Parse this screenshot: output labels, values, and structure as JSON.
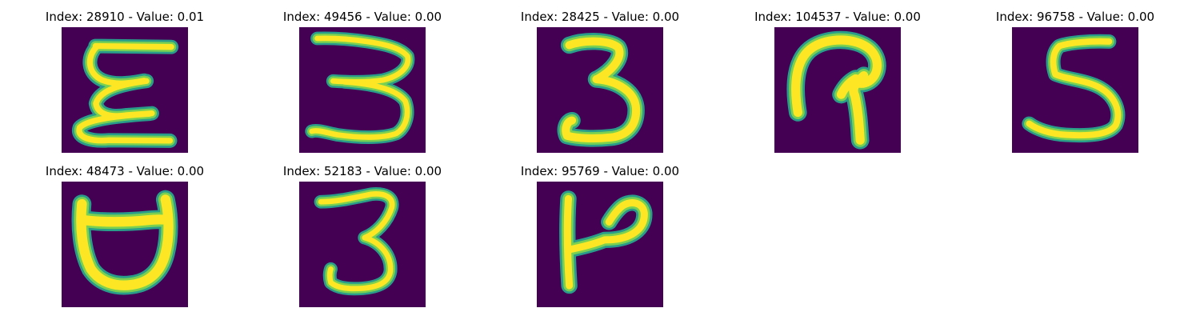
{
  "figure": {
    "colormap": "viridis",
    "background_color": "#440154",
    "stroke_color": "#fde725",
    "edge_color": "#21918c",
    "grid": {
      "rows": 2,
      "columns": 5
    },
    "panels": [
      {
        "title": "Index: 28910 - Value: 0.01",
        "image": "handwritten-glyph-epsilon-like"
      },
      {
        "title": "Index: 49456 - Value: 0.00",
        "image": "handwritten-glyph-three-wide"
      },
      {
        "title": "Index: 28425 - Value: 0.00",
        "image": "handwritten-glyph-three-bold"
      },
      {
        "title": "Index: 104537 - Value: 0.00",
        "image": "handwritten-glyph-hook"
      },
      {
        "title": "Index: 96758 - Value: 0.00",
        "image": "handwritten-glyph-five"
      },
      {
        "title": "Index: 48473 - Value: 0.00",
        "image": "handwritten-glyph-cup"
      },
      {
        "title": "Index: 52183 - Value: 0.00",
        "image": "handwritten-glyph-three-thin"
      },
      {
        "title": "Index: 95769 - Value: 0.00",
        "image": "handwritten-glyph-p-like"
      }
    ]
  }
}
